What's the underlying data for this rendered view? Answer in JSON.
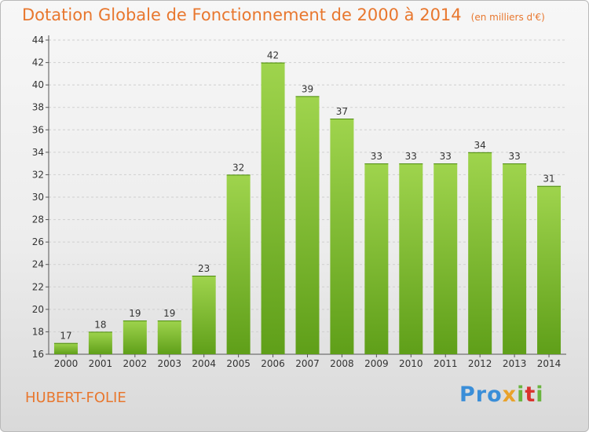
{
  "title": "Dotation Globale de Fonctionnement de 2000 à 2014",
  "unit_note": "(en milliers d'€)",
  "commune": "HUBERT-FOLIE",
  "logo_text": "Proxiti",
  "colors": {
    "accent": "#e8772e",
    "bar_light": "#9fd44d",
    "bar_dark": "#5f9f19"
  },
  "chart_data": {
    "type": "bar",
    "categories": [
      "2000",
      "2001",
      "2002",
      "2003",
      "2004",
      "2005",
      "2006",
      "2007",
      "2008",
      "2009",
      "2010",
      "2011",
      "2012",
      "2013",
      "2014"
    ],
    "values": [
      17,
      18,
      19,
      19,
      23,
      32,
      42,
      39,
      37,
      33,
      33,
      33,
      34,
      33,
      31
    ],
    "title": "Dotation Globale de Fonctionnement de 2000 à 2014",
    "ylim": [
      16,
      44
    ],
    "yticks": [
      16,
      18,
      20,
      22,
      24,
      26,
      28,
      30,
      32,
      34,
      36,
      38,
      40,
      42,
      44
    ],
    "grid": true
  }
}
